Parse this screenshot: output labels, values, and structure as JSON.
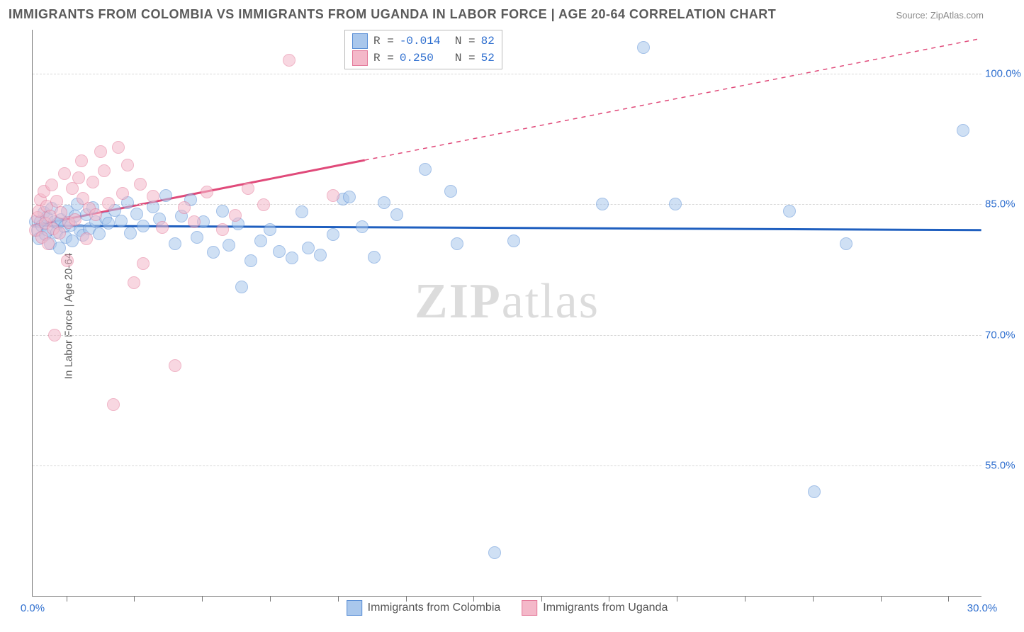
{
  "title": "IMMIGRANTS FROM COLOMBIA VS IMMIGRANTS FROM UGANDA IN LABOR FORCE | AGE 20-64 CORRELATION CHART",
  "source": "Source: ZipAtlas.com",
  "ylabel": "In Labor Force | Age 20-64",
  "watermark_a": "ZIP",
  "watermark_b": "atlas",
  "chart": {
    "type": "scatter",
    "xlim": [
      0.0,
      30.0
    ],
    "ylim": [
      40.0,
      105.0
    ],
    "yticks": [
      55.0,
      70.0,
      85.0,
      100.0
    ],
    "ytick_labels": [
      "55.0%",
      "70.0%",
      "85.0%",
      "100.0%"
    ],
    "xtick_marks": [
      1.07,
      3.21,
      5.36,
      7.5,
      9.64,
      11.79,
      13.93,
      16.07,
      18.21,
      20.36,
      22.5,
      24.64,
      26.79,
      28.93
    ],
    "xtick_labels": [
      {
        "x": 0.0,
        "t": "0.0%"
      },
      {
        "x": 30.0,
        "t": "30.0%"
      }
    ],
    "background_color": "#ffffff",
    "grid_color": "#d8d8d8",
    "axis_color": "#777777",
    "label_color": "#5a5a5a",
    "tick_color": "#2f6fcf",
    "marker_radius": 9,
    "marker_opacity": 0.55,
    "series": [
      {
        "name": "Immigrants from Colombia",
        "fill": "#a9c7ec",
        "stroke": "#5a8fd6",
        "line_color": "#1f5fbf",
        "line_width": 3,
        "R": "-0.014",
        "N": "82",
        "trend": {
          "x1": 0.0,
          "y1": 82.5,
          "x2": 30.0,
          "y2": 82.0,
          "dash_from_x": null
        },
        "points": [
          [
            0.1,
            83
          ],
          [
            0.15,
            82
          ],
          [
            0.2,
            81
          ],
          [
            0.25,
            83
          ],
          [
            0.3,
            82.5
          ],
          [
            0.35,
            84
          ],
          [
            0.4,
            81.5
          ],
          [
            0.45,
            83.5
          ],
          [
            0.5,
            82
          ],
          [
            0.55,
            80.5
          ],
          [
            0.6,
            84.5
          ],
          [
            0.7,
            83
          ],
          [
            0.75,
            81.8
          ],
          [
            0.8,
            82.8
          ],
          [
            0.85,
            80
          ],
          [
            0.9,
            83.2
          ],
          [
            1.0,
            82.4
          ],
          [
            1.05,
            81.2
          ],
          [
            1.1,
            84.2
          ],
          [
            1.2,
            82.6
          ],
          [
            1.25,
            80.8
          ],
          [
            1.35,
            83.6
          ],
          [
            1.4,
            85
          ],
          [
            1.5,
            82
          ],
          [
            1.6,
            81.4
          ],
          [
            1.7,
            83.8
          ],
          [
            1.8,
            82.2
          ],
          [
            1.9,
            84.6
          ],
          [
            2.0,
            83
          ],
          [
            2.1,
            81.6
          ],
          [
            2.3,
            83.4
          ],
          [
            2.4,
            82.8
          ],
          [
            2.6,
            84.3
          ],
          [
            2.8,
            83.1
          ],
          [
            3.0,
            85.2
          ],
          [
            3.1,
            81.7
          ],
          [
            3.3,
            83.9
          ],
          [
            3.5,
            82.5
          ],
          [
            3.8,
            84.7
          ],
          [
            4.0,
            83.3
          ],
          [
            4.2,
            86
          ],
          [
            4.5,
            80.5
          ],
          [
            4.7,
            83.6
          ],
          [
            5.0,
            85.5
          ],
          [
            5.2,
            81.2
          ],
          [
            5.4,
            83
          ],
          [
            5.7,
            79.5
          ],
          [
            6.0,
            84.2
          ],
          [
            6.2,
            80.3
          ],
          [
            6.5,
            82.7
          ],
          [
            6.6,
            75.5
          ],
          [
            6.9,
            78.5
          ],
          [
            7.2,
            80.8
          ],
          [
            7.5,
            82.1
          ],
          [
            7.8,
            79.6
          ],
          [
            8.2,
            78.8
          ],
          [
            8.5,
            84.1
          ],
          [
            8.7,
            80
          ],
          [
            9.1,
            79.2
          ],
          [
            9.5,
            81.5
          ],
          [
            9.8,
            85.6
          ],
          [
            10.0,
            85.8
          ],
          [
            10.4,
            82.4
          ],
          [
            10.8,
            78.9
          ],
          [
            11.1,
            85.2
          ],
          [
            11.5,
            83.8
          ],
          [
            12.4,
            89
          ],
          [
            13.2,
            86.5
          ],
          [
            13.4,
            80.5
          ],
          [
            14.6,
            45
          ],
          [
            15.2,
            80.8
          ],
          [
            18.0,
            85
          ],
          [
            19.3,
            103
          ],
          [
            20.3,
            85
          ],
          [
            23.9,
            84.2
          ],
          [
            24.7,
            52
          ],
          [
            25.7,
            80.5
          ],
          [
            29.4,
            93.5
          ]
        ]
      },
      {
        "name": "Immigrants from Uganda",
        "fill": "#f4b8c9",
        "stroke": "#e47a9a",
        "line_color": "#e04a7a",
        "line_width": 3,
        "R": "0.250",
        "N": "52",
        "trend": {
          "x1": 0.0,
          "y1": 82.5,
          "x2": 30.0,
          "y2": 104.0,
          "dash_from_x": 10.5
        },
        "points": [
          [
            0.1,
            82
          ],
          [
            0.15,
            83.5
          ],
          [
            0.2,
            84.2
          ],
          [
            0.25,
            85.5
          ],
          [
            0.3,
            81.2
          ],
          [
            0.35,
            86.5
          ],
          [
            0.4,
            82.8
          ],
          [
            0.45,
            84.8
          ],
          [
            0.5,
            80.5
          ],
          [
            0.55,
            83.6
          ],
          [
            0.6,
            87.2
          ],
          [
            0.65,
            82.2
          ],
          [
            0.7,
            70
          ],
          [
            0.75,
            85.3
          ],
          [
            0.85,
            81.7
          ],
          [
            0.9,
            84
          ],
          [
            1.0,
            88.5
          ],
          [
            1.1,
            78.5
          ],
          [
            1.15,
            82.9
          ],
          [
            1.25,
            86.8
          ],
          [
            1.35,
            83.2
          ],
          [
            1.45,
            88
          ],
          [
            1.55,
            90
          ],
          [
            1.6,
            85.7
          ],
          [
            1.7,
            81
          ],
          [
            1.8,
            84.5
          ],
          [
            1.9,
            87.5
          ],
          [
            2.0,
            83.8
          ],
          [
            2.15,
            91
          ],
          [
            2.25,
            88.8
          ],
          [
            2.4,
            85.1
          ],
          [
            2.55,
            62
          ],
          [
            2.7,
            91.5
          ],
          [
            2.85,
            86.2
          ],
          [
            3.0,
            89.5
          ],
          [
            3.2,
            76
          ],
          [
            3.4,
            87.3
          ],
          [
            3.5,
            78.2
          ],
          [
            3.8,
            85.9
          ],
          [
            4.1,
            82.3
          ],
          [
            4.5,
            66.5
          ],
          [
            4.8,
            84.6
          ],
          [
            5.1,
            83
          ],
          [
            5.5,
            86.4
          ],
          [
            6.0,
            82.1
          ],
          [
            6.4,
            83.7
          ],
          [
            6.8,
            86.8
          ],
          [
            7.3,
            84.9
          ],
          [
            8.1,
            101.5
          ],
          [
            9.5,
            86
          ]
        ]
      }
    ]
  },
  "legend_top": [
    {
      "sw_fill": "#a9c7ec",
      "sw_stroke": "#5a8fd6",
      "r_lab": "R =",
      "r": "-0.014",
      "n_lab": "N =",
      "n": "82"
    },
    {
      "sw_fill": "#f4b8c9",
      "sw_stroke": "#e47a9a",
      "r_lab": "R =",
      "r": " 0.250",
      "n_lab": "N =",
      "n": "52"
    }
  ],
  "legend_bottom": [
    {
      "sw_fill": "#a9c7ec",
      "sw_stroke": "#5a8fd6",
      "label": "Immigrants from Colombia"
    },
    {
      "sw_fill": "#f4b8c9",
      "sw_stroke": "#e47a9a",
      "label": "Immigrants from Uganda"
    }
  ]
}
